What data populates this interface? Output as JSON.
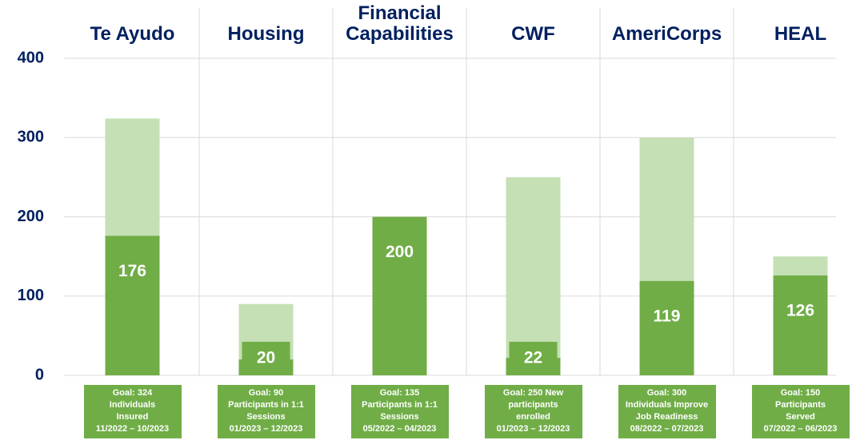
{
  "chart_data": {
    "type": "bar",
    "categories": [
      "Te Ayudo",
      "Housing",
      "Financial Capabilities",
      "CWF",
      "AmeriCorps",
      "HEAL"
    ],
    "series": [
      {
        "color": "#c5e0b4",
        "values": [
          324,
          90,
          135,
          250,
          300,
          150
        ]
      },
      {
        "color": "#70ad47",
        "values": [
          176,
          20,
          200,
          22,
          119,
          126
        ]
      }
    ],
    "ylim": [
      0,
      400
    ],
    "yticks": [
      0,
      100,
      200,
      300,
      400
    ],
    "grid": true,
    "notes": [
      [
        "Goal: 324",
        "Individuals",
        "Insured",
        "11/2022 – 10/2023"
      ],
      [
        "Goal: 90",
        "Participants in 1:1",
        "Sessions",
        "01/2023 – 12/2023"
      ],
      [
        "Goal: 135",
        "Participants in 1:1",
        "Sessions",
        "05/2022 – 04/2023"
      ],
      [
        "Goal: 250 New",
        "participants",
        "enrolled",
        "01/2023 – 12/2023"
      ],
      [
        "Goal: 300",
        "Individuals Improve",
        "Job Readiness",
        "08/2022 – 07/2023"
      ],
      [
        "Goal: 150",
        "Participants",
        "Served",
        "07/2022 – 06/2023"
      ]
    ]
  }
}
